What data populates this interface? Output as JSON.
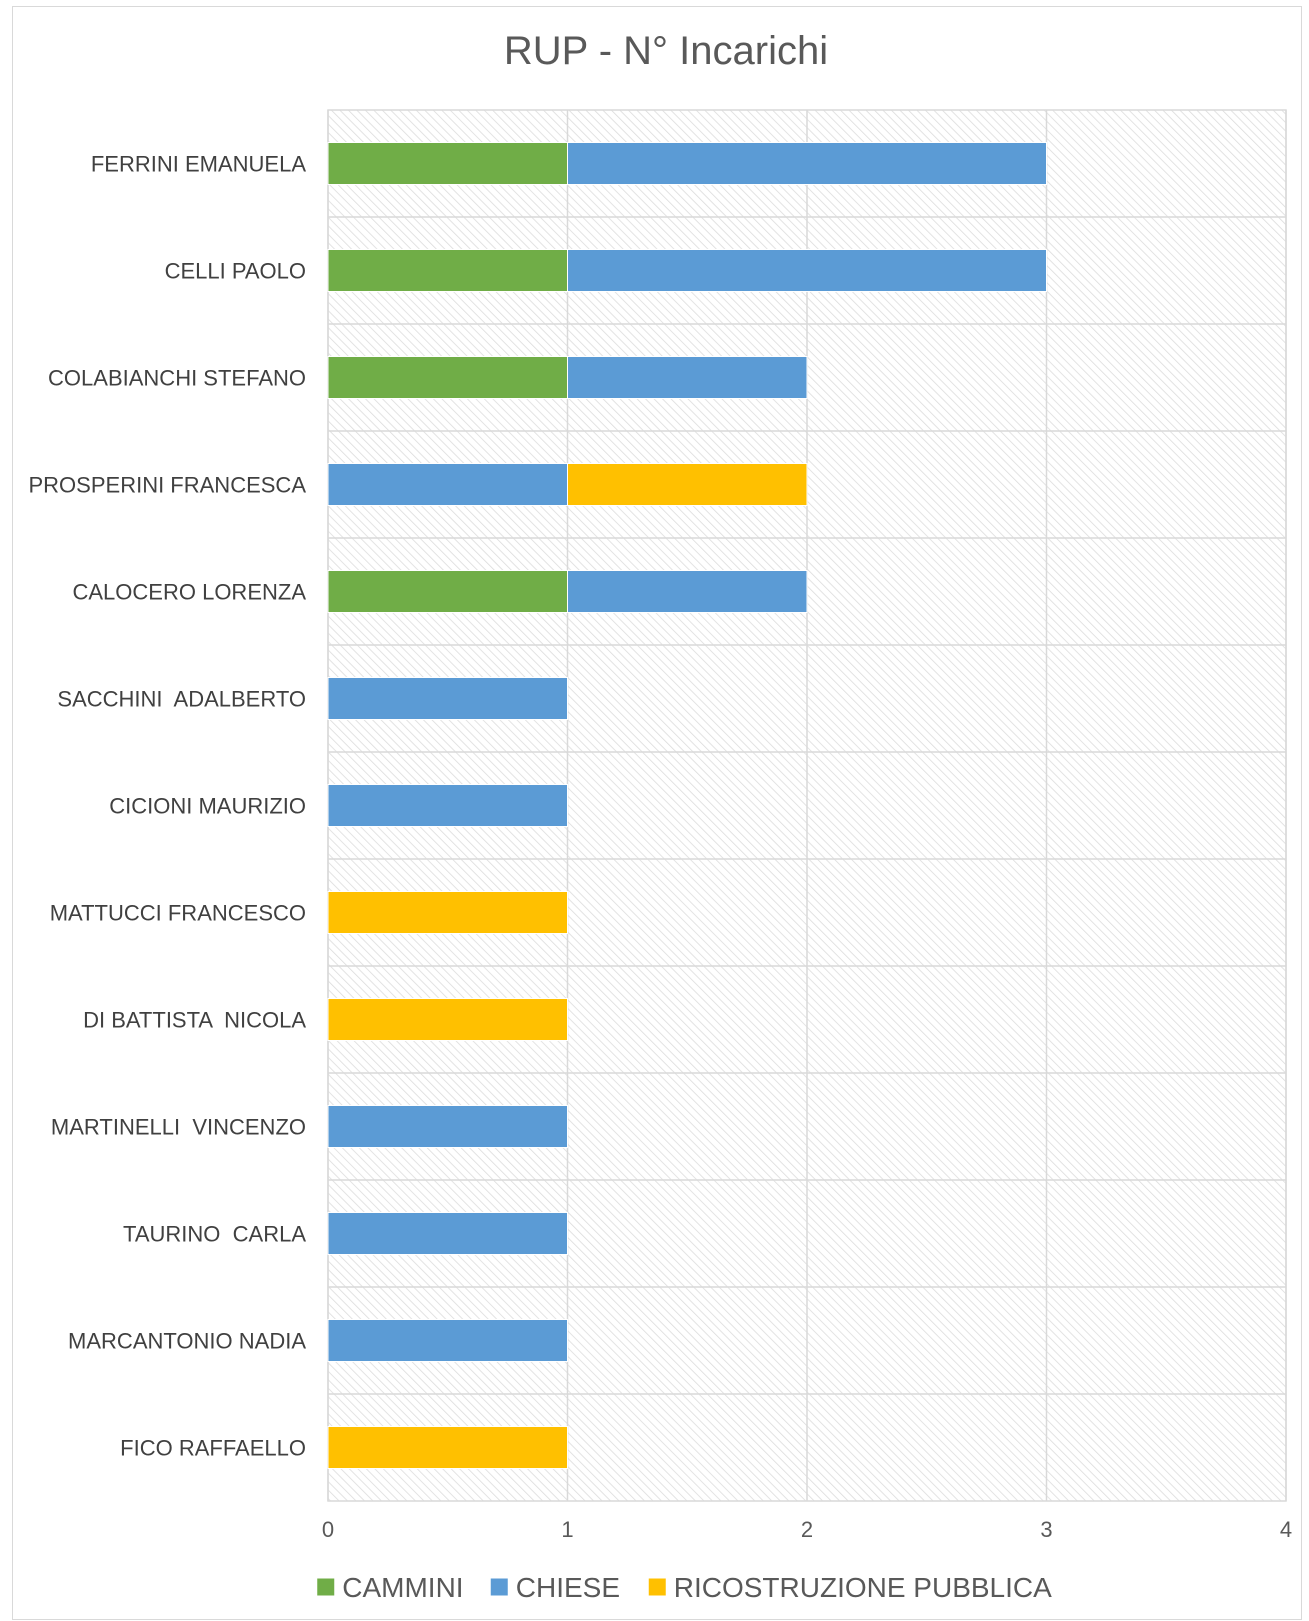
{
  "chart_data": {
    "type": "bar",
    "orientation": "horizontal",
    "stacked": true,
    "title": "RUP - N° Incarichi",
    "xlabel": "",
    "ylabel": "",
    "xlim": [
      0,
      4
    ],
    "xticks": [
      "0",
      "1",
      "2",
      "3",
      "4"
    ],
    "grid": true,
    "legend_position": "bottom",
    "categories": [
      "FERRINI EMANUELA",
      "CELLI PAOLO",
      "COLABIANCHI STEFANO",
      "PROSPERINI FRANCESCA",
      "CALOCERO LORENZA",
      "SACCHINI  ADALBERTO",
      "CICIONI MAURIZIO",
      "MATTUCCI FRANCESCO",
      "DI BATTISTA  NICOLA",
      "MARTINELLI  VINCENZO",
      "TAURINO  CARLA",
      "MARCANTONIO NADIA",
      "FICO RAFFAELLO"
    ],
    "series": [
      {
        "name": "CAMMINI",
        "color": "#70ad47",
        "values": [
          1,
          1,
          1,
          0,
          1,
          0,
          0,
          0,
          0,
          0,
          0,
          0,
          0
        ]
      },
      {
        "name": "CHIESE",
        "color": "#5b9bd5",
        "values": [
          2,
          2,
          1,
          1,
          1,
          1,
          1,
          0,
          0,
          1,
          1,
          1,
          0
        ]
      },
      {
        "name": "RICOSTRUZIONE PUBBLICA",
        "color": "#ffc000",
        "values": [
          0,
          0,
          0,
          1,
          0,
          0,
          0,
          1,
          1,
          0,
          0,
          0,
          1
        ]
      }
    ]
  }
}
